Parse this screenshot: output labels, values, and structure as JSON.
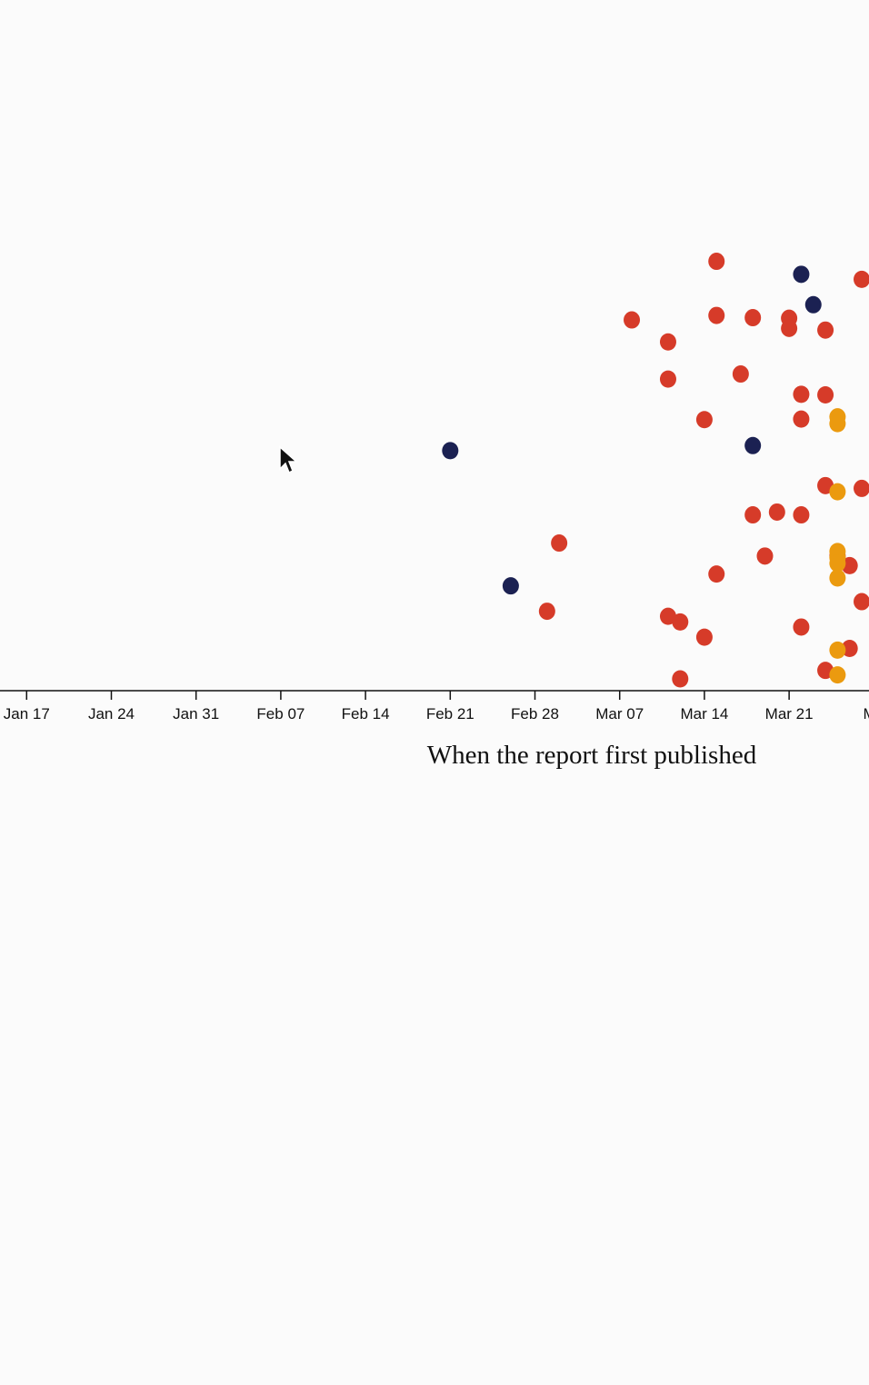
{
  "chart_data": {
    "type": "scatter",
    "title": "",
    "xlabel": "When the report first published",
    "ylabel": "",
    "x_ticks": [
      "Jan 17",
      "Jan 24",
      "Jan 31",
      "Feb 07",
      "Feb 14",
      "Feb 21",
      "Feb 28",
      "Mar 07",
      "Mar 14",
      "Mar 21",
      "Ma"
    ],
    "x_range_days": [
      -2.2,
      69.6
    ],
    "y_range": [
      0,
      1
    ],
    "grid": false,
    "colors": {
      "red": "#d63b29",
      "navy": "#1b2152",
      "orange": "#eb9a0f"
    },
    "series": [
      {
        "color": "navy",
        "points": [
          {
            "x": 35.0,
            "y": 0.426
          },
          {
            "x": 40.0,
            "y": 0.186
          },
          {
            "x": 60.0,
            "y": 0.435
          },
          {
            "x": 64.0,
            "y": 0.739
          },
          {
            "x": 65.0,
            "y": 0.685
          }
        ]
      },
      {
        "color": "red",
        "points": [
          {
            "x": 44.0,
            "y": 0.262
          },
          {
            "x": 43.0,
            "y": 0.141
          },
          {
            "x": 50.0,
            "y": 0.658
          },
          {
            "x": 53.0,
            "y": 0.619
          },
          {
            "x": 53.0,
            "y": 0.553
          },
          {
            "x": 53.0,
            "y": 0.132
          },
          {
            "x": 54.0,
            "y": 0.122
          },
          {
            "x": 54.0,
            "y": 0.021
          },
          {
            "x": 56.0,
            "y": 0.481
          },
          {
            "x": 56.0,
            "y": 0.095
          },
          {
            "x": 57.0,
            "y": 0.762
          },
          {
            "x": 57.0,
            "y": 0.666
          },
          {
            "x": 57.0,
            "y": 0.207
          },
          {
            "x": 59.0,
            "y": 0.562
          },
          {
            "x": 60.0,
            "y": 0.662
          },
          {
            "x": 60.0,
            "y": 0.312
          },
          {
            "x": 61.0,
            "y": 0.239
          },
          {
            "x": 62.0,
            "y": 0.317
          },
          {
            "x": 63.0,
            "y": 0.661
          },
          {
            "x": 63.0,
            "y": 0.643
          },
          {
            "x": 64.0,
            "y": 0.526
          },
          {
            "x": 64.0,
            "y": 0.482
          },
          {
            "x": 64.0,
            "y": 0.312
          },
          {
            "x": 64.0,
            "y": 0.113
          },
          {
            "x": 66.0,
            "y": 0.64
          },
          {
            "x": 66.0,
            "y": 0.525
          },
          {
            "x": 66.0,
            "y": 0.364
          },
          {
            "x": 66.0,
            "y": 0.036
          },
          {
            "x": 67.0,
            "y": 0.239
          },
          {
            "x": 68.0,
            "y": 0.222
          },
          {
            "x": 68.0,
            "y": 0.075
          },
          {
            "x": 69.0,
            "y": 0.73
          },
          {
            "x": 69.0,
            "y": 0.359
          },
          {
            "x": 69.0,
            "y": 0.158
          }
        ]
      },
      {
        "color": "orange",
        "points": [
          {
            "x": 67.0,
            "y": 0.486
          },
          {
            "x": 67.0,
            "y": 0.474
          },
          {
            "x": 67.0,
            "y": 0.353
          },
          {
            "x": 67.0,
            "y": 0.247
          },
          {
            "x": 67.0,
            "y": 0.236
          },
          {
            "x": 67.0,
            "y": 0.226
          },
          {
            "x": 67.0,
            "y": 0.2
          },
          {
            "x": 67.0,
            "y": 0.072
          },
          {
            "x": 67.0,
            "y": 0.028
          }
        ]
      }
    ]
  }
}
